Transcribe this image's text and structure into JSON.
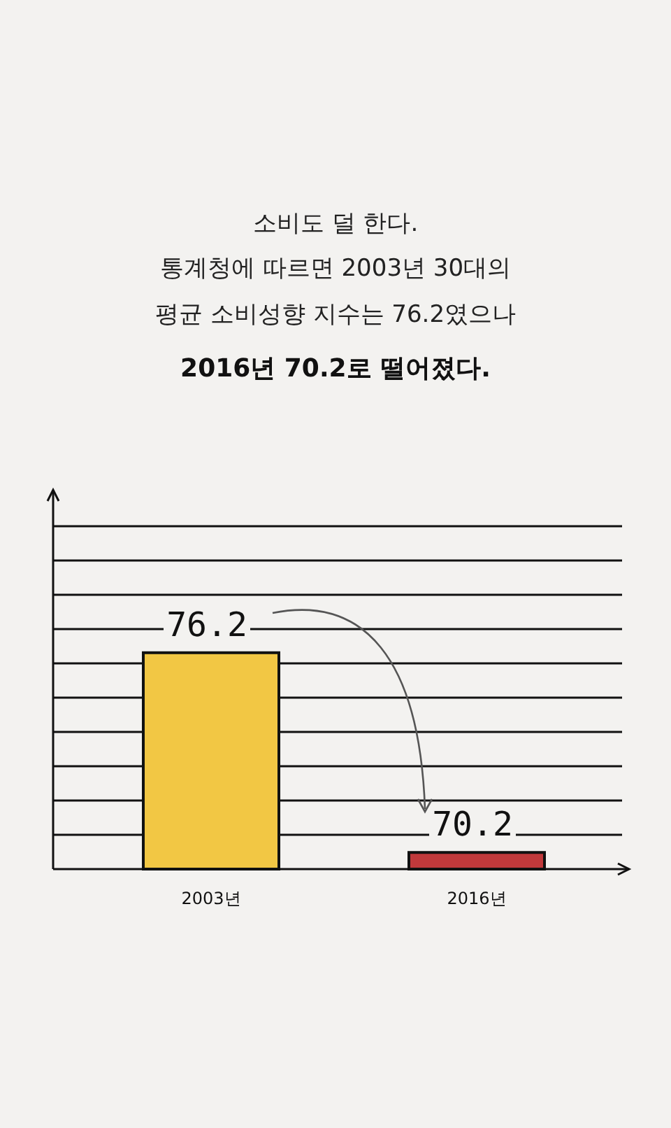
{
  "chart_data": {
    "type": "bar",
    "title": "소비도 덜 한다.",
    "subtitle": "통계청에 따르면 2003년 30대의\n평균 소비성향 지수는 76.2였으나",
    "annotations": [
      "2016년 70.2로 떨어졌다."
    ],
    "categories": [
      "2003년",
      "2016년"
    ],
    "values": [
      76.2,
      70.2
    ],
    "colors": [
      "#f2c744",
      "#c0393b"
    ],
    "data_labels": true,
    "ylim": [
      69.7,
      80
    ],
    "yticks": [
      {
        "value": 70.73,
        "label": null
      },
      {
        "value": 71.76,
        "label": null
      },
      {
        "value": 72.79,
        "label": null
      },
      {
        "value": 73.82,
        "label": null
      },
      {
        "value": 74.85,
        "label": null
      },
      {
        "value": 75.88,
        "label": null
      },
      {
        "value": 76.91,
        "label": null
      },
      {
        "value": 77.94,
        "label": null
      },
      {
        "value": 78.97,
        "label": null
      },
      {
        "value": 80,
        "label": null
      }
    ],
    "grid": "y",
    "tick_labels": "x"
  }
}
